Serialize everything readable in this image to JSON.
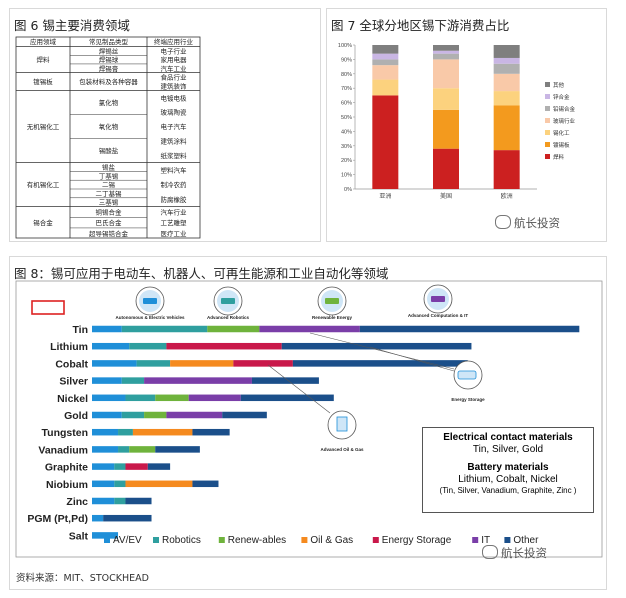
{
  "fig6": {
    "title": "图 6 锡主要消费领域",
    "headers": [
      "应用领域",
      "常见制品类型",
      "终端应用行业"
    ],
    "rows": [
      {
        "domain": "焊料",
        "products": [
          "焊锡丝",
          "焊锡球",
          "焊锡膏"
        ],
        "industries": [
          "电子行业",
          "家用电器",
          "汽车工业"
        ]
      },
      {
        "domain": "镀锡板",
        "products": [
          "包装材料及各种容器"
        ],
        "industries": [
          "食品行业",
          "建筑装饰"
        ]
      },
      {
        "domain": "无机锡化工",
        "products": [
          "氯化物",
          "氧化物",
          "锡酸盐"
        ],
        "industries": [
          "电镀电极",
          "玻璃陶瓷",
          "电子汽车",
          "建筑涂料",
          "纸浆塑料"
        ]
      },
      {
        "domain": "有机锡化工",
        "products": [
          "锡盐",
          "丁基锡",
          "二锡",
          "二丁基锡",
          "三基锡"
        ],
        "industries": [
          "塑料汽车",
          "制冷农药",
          "防腐橡胶"
        ]
      },
      {
        "domain": "锡合金",
        "products": [
          "铜锡合金",
          "巴氏合金",
          "超导锡锆合金"
        ],
        "industries": [
          "汽车行业",
          "工艺雕塑",
          "医疗工业"
        ]
      }
    ]
  },
  "fig7": {
    "title": "图 7 全球分地区锡下游消费占比",
    "watermark": "航长投资"
  },
  "fig8": {
    "title": "图 8：锡可应用于电动车、机器人、可再生能源和工业自动化等领域",
    "icons": {
      "av": "Autonomous & Electric Vehicles",
      "robotics": "Advanced Robotics",
      "renewable": "Renewable Energy",
      "computation": "Advanced Computation & IT",
      "storage": "Energy Storage",
      "oilgas": "Advanced Oil & Gas"
    },
    "box": {
      "h1": "Electrical contact materials",
      "l1": "Tin, Silver, Gold",
      "h2": "Battery materials",
      "l2": "Lithium, Cobalt, Nickel",
      "l3": "(Tin, Silver, Vanadium, Graphite, Zinc )"
    },
    "source": "资料来源：MIT、STOCKHEAD",
    "watermark": "航长投资"
  },
  "chart_data": [
    {
      "type": "bar",
      "stacked": true,
      "categories": [
        "亚洲",
        "美国",
        "欧洲"
      ],
      "ylim": [
        0,
        100
      ],
      "yticks": [
        "0%",
        "10%",
        "20%",
        "30%",
        "40%",
        "50%",
        "60%",
        "70%",
        "80%",
        "90%",
        "100%"
      ],
      "series": [
        {
          "name": "焊料",
          "values": [
            65,
            28,
            27
          ],
          "color": "#cc2020"
        },
        {
          "name": "镀锡板",
          "values": [
            0,
            27,
            31
          ],
          "color": "#f39a1e"
        },
        {
          "name": "锡化工",
          "values": [
            11,
            15,
            10
          ],
          "color": "#fcd27e"
        },
        {
          "name": "玻璃行业",
          "values": [
            10,
            20,
            12
          ],
          "color": "#f9c9a8"
        },
        {
          "name": "铅锡合金",
          "values": [
            4,
            4,
            7
          ],
          "color": "#b0b0b0"
        },
        {
          "name": "锌合金",
          "values": [
            4,
            2,
            4
          ],
          "color": "#c9b6e4"
        },
        {
          "name": "其他",
          "values": [
            6,
            4,
            9
          ],
          "color": "#7f7f7f"
        }
      ],
      "legend_order": [
        "其他",
        "锌合金",
        "铅锡合金",
        "玻璃行业",
        "锡化工",
        "镀锡板",
        "焊料"
      ],
      "legend": "right"
    },
    {
      "type": "bar",
      "orientation": "horizontal",
      "stacked": true,
      "categories": [
        "Tin",
        "Lithium",
        "Cobalt",
        "Silver",
        "Nickel",
        "Gold",
        "Tungsten",
        "Vanadium",
        "Graphite",
        "Niobium",
        "Zinc",
        "PGM (Pt,Pd)",
        "Salt"
      ],
      "series": [
        {
          "name": "AV/EV",
          "color": "#1f8fd8",
          "values": [
            8,
            10,
            12,
            8,
            9,
            8,
            7,
            7,
            6,
            6,
            6,
            3,
            7
          ]
        },
        {
          "name": "Robotics",
          "color": "#2f9f9f",
          "values": [
            23,
            10,
            9,
            6,
            8,
            6,
            4,
            3,
            3,
            3,
            3,
            0,
            0
          ]
        },
        {
          "name": "Renew-ables",
          "color": "#6fb33c",
          "values": [
            14,
            0,
            0,
            0,
            9,
            6,
            0,
            7,
            0,
            0,
            0,
            0,
            0
          ]
        },
        {
          "name": "Oil & Gas",
          "color": "#f58a1f",
          "values": [
            0,
            0,
            17,
            0,
            0,
            0,
            16,
            0,
            0,
            18,
            0,
            0,
            0
          ]
        },
        {
          "name": "Energy Storage",
          "color": "#c9184a",
          "values": [
            0,
            31,
            16,
            0,
            0,
            0,
            0,
            0,
            6,
            0,
            0,
            0,
            0
          ]
        },
        {
          "name": "IT",
          "color": "#7a3ea8",
          "values": [
            27,
            0,
            0,
            29,
            14,
            15,
            0,
            0,
            0,
            0,
            0,
            0,
            0
          ]
        },
        {
          "name": "Other",
          "color": "#1b4f8a",
          "values": [
            59,
            51,
            47,
            18,
            25,
            12,
            10,
            12,
            6,
            7,
            7,
            13,
            0
          ]
        }
      ],
      "legend": "bottom"
    }
  ]
}
